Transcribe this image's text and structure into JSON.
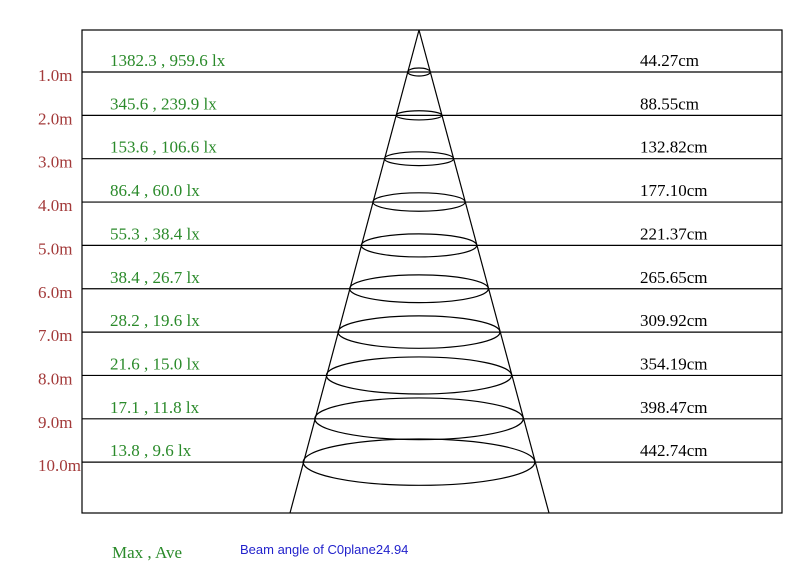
{
  "rows": [
    {
      "distance": "1.0m",
      "illuminance": "1382.3 , 959.6 lx",
      "diameter": "44.27cm"
    },
    {
      "distance": "2.0m",
      "illuminance": "345.6 , 239.9 lx",
      "diameter": "88.55cm"
    },
    {
      "distance": "3.0m",
      "illuminance": "153.6 , 106.6 lx",
      "diameter": "132.82cm"
    },
    {
      "distance": "4.0m",
      "illuminance": "86.4 , 60.0 lx",
      "diameter": "177.10cm"
    },
    {
      "distance": "5.0m",
      "illuminance": "55.3 , 38.4 lx",
      "diameter": "221.37cm"
    },
    {
      "distance": "6.0m",
      "illuminance": "38.4 , 26.7 lx",
      "diameter": "265.65cm"
    },
    {
      "distance": "7.0m",
      "illuminance": "28.2 , 19.6 lx",
      "diameter": "309.92cm"
    },
    {
      "distance": "8.0m",
      "illuminance": "21.6 , 15.0 lx",
      "diameter": "354.19cm"
    },
    {
      "distance": "9.0m",
      "illuminance": "17.1 , 11.8 lx",
      "diameter": "398.47cm"
    },
    {
      "distance": "10.0m",
      "illuminance": "13.8 , 9.6 lx",
      "diameter": "442.74cm"
    }
  ],
  "legend": "Max , Ave",
  "beam_angle": "Beam angle of C0plane24.94"
}
